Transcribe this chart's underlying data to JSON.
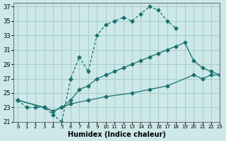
{
  "xlabel": "Humidex (Indice chaleur)",
  "background_color": "#cce8e8",
  "grid_color": "#aacccc",
  "line_color": "#1a7070",
  "xlim": [
    -0.5,
    23
  ],
  "ylim": [
    21,
    37.5
  ],
  "xticks": [
    0,
    1,
    2,
    3,
    4,
    5,
    6,
    7,
    8,
    9,
    10,
    11,
    12,
    13,
    14,
    15,
    16,
    17,
    18,
    19,
    20,
    21,
    22,
    23
  ],
  "yticks": [
    21,
    23,
    25,
    27,
    29,
    31,
    33,
    35,
    37
  ],
  "curve1_x": [
    0,
    1,
    2,
    3,
    4,
    5,
    6,
    7,
    8,
    9,
    10,
    11,
    12,
    13,
    14,
    15,
    16,
    17,
    18
  ],
  "curve1_y": [
    24.0,
    23.0,
    23.0,
    23.0,
    22.0,
    21.0,
    27.0,
    30.0,
    28.0,
    33.0,
    34.5,
    35.0,
    35.5,
    35.0,
    36.0,
    37.0,
    36.5,
    35.0,
    34.0
  ],
  "curve2_x": [
    0,
    3,
    4,
    5,
    6,
    7,
    8,
    9,
    10,
    11,
    12,
    13,
    14,
    15,
    16,
    17,
    18,
    19,
    20,
    21,
    22,
    23
  ],
  "curve2_y": [
    24.0,
    23.0,
    22.5,
    23.0,
    24.0,
    25.5,
    26.0,
    27.0,
    27.5,
    28.0,
    28.5,
    29.0,
    29.5,
    30.0,
    30.5,
    31.0,
    31.5,
    32.0,
    29.5,
    28.5,
    28.0,
    27.5
  ],
  "curve3_x": [
    0,
    3,
    4,
    5,
    6,
    8,
    10,
    13,
    15,
    17,
    20,
    21,
    22,
    23
  ],
  "curve3_y": [
    24.0,
    23.0,
    22.5,
    23.0,
    23.5,
    24.0,
    24.5,
    25.0,
    25.5,
    26.0,
    27.5,
    27.0,
    27.5,
    27.5
  ]
}
